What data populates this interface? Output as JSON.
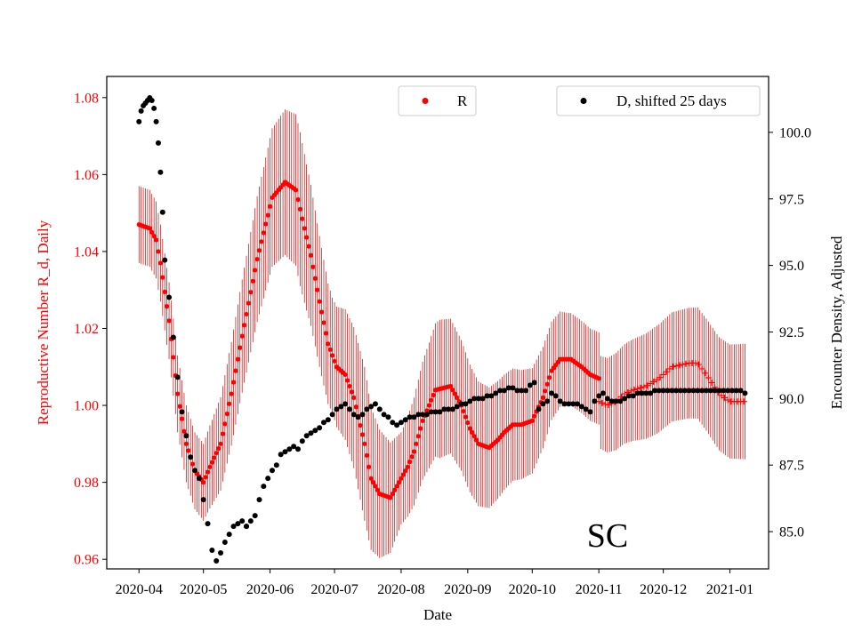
{
  "chart_data": {
    "type": "scatter",
    "title": "",
    "xlabel": "Date",
    "ylabel_left": "Reproductive Number R_d, Daily",
    "ylabel_right": "Encounter Density, Adjusted",
    "annotation": "SC",
    "colors": {
      "r_series": "#ff0000",
      "d_series": "#000000",
      "errorbar": "#cc0000"
    },
    "x_ticks": [
      "2020-04",
      "2020-05",
      "2020-06",
      "2020-07",
      "2020-08",
      "2020-09",
      "2020-10",
      "2020-11",
      "2020-12",
      "2021-01"
    ],
    "x_tick_days": [
      0,
      30,
      61,
      91,
      122,
      153,
      183,
      214,
      244,
      275
    ],
    "xlim_days": [
      -15,
      293
    ],
    "y_left_ticks": [
      "0.96",
      "0.98",
      "1.00",
      "1.02",
      "1.04",
      "1.06",
      "1.08"
    ],
    "y_left_tick_values": [
      0.96,
      0.98,
      1.0,
      1.02,
      1.04,
      1.06,
      1.08
    ],
    "ylim_left": [
      0.9575,
      1.0855
    ],
    "y_right_ticks": [
      "85.0",
      "87.5",
      "90.0",
      "92.5",
      "95.0",
      "97.5",
      "100.0"
    ],
    "y_right_tick_values": [
      85.0,
      87.5,
      90.0,
      92.5,
      95.0,
      97.5,
      100.0
    ],
    "ylim_right": [
      83.6,
      102.1
    ],
    "legend": [
      {
        "label": "R",
        "color": "#ff0000"
      },
      {
        "label": "D, shifted 25 days",
        "color": "#000000"
      }
    ],
    "series": [
      {
        "name": "R",
        "axis": "left",
        "marker": "circle",
        "keypoints": {
          "x": [
            0,
            5,
            8,
            10,
            14,
            18,
            22,
            26,
            30,
            33,
            38,
            43,
            48,
            55,
            62,
            68,
            73,
            77,
            80,
            84,
            88,
            92,
            96,
            100,
            105,
            108,
            112,
            117,
            121,
            125,
            128,
            132,
            138,
            145,
            150,
            154,
            158,
            163,
            167,
            170,
            174,
            178,
            183,
            188,
            192,
            196,
            201,
            206,
            210,
            214
          ],
          "y": [
            1.047,
            1.046,
            1.043,
            1.037,
            1.022,
            1.003,
            0.99,
            0.983,
            0.98,
            0.984,
            0.99,
            1.003,
            1.018,
            1.038,
            1.054,
            1.058,
            1.056,
            1.046,
            1.039,
            1.027,
            1.016,
            1.01,
            1.008,
            1.002,
            0.99,
            0.981,
            0.977,
            0.976,
            0.98,
            0.984,
            0.988,
            0.996,
            1.004,
            1.005,
            1.0,
            0.994,
            0.99,
            0.989,
            0.991,
            0.993,
            0.995,
            0.995,
            0.996,
            1.002,
            1.009,
            1.012,
            1.012,
            1.01,
            1.008,
            1.007
          ]
        },
        "range": [
          0,
          214
        ],
        "step": 1
      },
      {
        "name": "R_plus",
        "axis": "left",
        "marker": "plus",
        "keypoints": {
          "x": [
            214,
            218,
            222,
            226,
            230,
            236,
            242,
            248,
            256,
            260,
            264,
            270,
            275,
            282
          ],
          "y": [
            1.001,
            1.0,
            1.001,
            1.003,
            1.004,
            1.005,
            1.007,
            1.01,
            1.011,
            1.011,
            1.008,
            1.003,
            1.001,
            1.001
          ]
        },
        "range": [
          214,
          282
        ],
        "step": 1.5
      },
      {
        "name": "R_errorbar",
        "axis": "left",
        "type": "errorbar",
        "halfwidth_keypoints": {
          "x": [
            0,
            15,
            30,
            45,
            62,
            75,
            90,
            105,
            122,
            140,
            160,
            180,
            200,
            214,
            240,
            282
          ],
          "y": [
            0.01,
            0.01,
            0.01,
            0.014,
            0.018,
            0.02,
            0.015,
            0.02,
            0.012,
            0.018,
            0.016,
            0.014,
            0.012,
            0.012,
            0.014,
            0.015
          ]
        },
        "range": [
          0,
          282
        ],
        "step": 1
      },
      {
        "name": "D, shifted 25 days",
        "axis": "right",
        "marker": "circle",
        "segments": [
          {
            "x": [
              0,
              1,
              2,
              3,
              4,
              5,
              6,
              7,
              8,
              9,
              10,
              11
            ],
            "y": [
              100.4,
              100.8,
              101.0,
              101.1,
              101.2,
              101.3,
              101.2,
              100.9,
              100.4,
              99.6,
              98.5,
              97.0
            ]
          },
          {
            "x": [
              12,
              14,
              16,
              18,
              20,
              22,
              24,
              26,
              28,
              30,
              32,
              34,
              36,
              38,
              40,
              42,
              44,
              46,
              48,
              50
            ],
            "y": [
              95.2,
              93.8,
              92.3,
              90.8,
              89.5,
              88.6,
              87.8,
              87.3,
              87.0,
              86.2,
              85.3,
              84.3,
              83.9,
              84.2,
              84.6,
              84.9,
              85.2,
              85.3,
              85.4,
              85.2
            ]
          },
          {
            "x": [
              50,
              52,
              54,
              56,
              58,
              60,
              62,
              64,
              66,
              68,
              70,
              72,
              74,
              76,
              78,
              80,
              82,
              84,
              86,
              88,
              90,
              92,
              94,
              96
            ],
            "y": [
              85.2,
              85.4,
              85.6,
              86.2,
              86.7,
              87.0,
              87.3,
              87.5,
              87.9,
              88.0,
              88.1,
              88.2,
              88.1,
              88.4,
              88.6,
              88.7,
              88.8,
              88.9,
              89.1,
              89.2,
              89.4,
              89.6,
              89.7,
              89.8
            ]
          },
          {
            "x": [
              98,
              100,
              102,
              104,
              106,
              108,
              110,
              112,
              114,
              116,
              118,
              120,
              122,
              124,
              126,
              128,
              130,
              132,
              134,
              136,
              138,
              140,
              142,
              144,
              146,
              148,
              150,
              152,
              154,
              156,
              158,
              160,
              162,
              164,
              166,
              168,
              170,
              172,
              174,
              176,
              178,
              180,
              182,
              184
            ],
            "y": [
              89.6,
              89.4,
              89.3,
              89.4,
              89.6,
              89.7,
              89.8,
              89.6,
              89.4,
              89.3,
              89.1,
              89.0,
              89.1,
              89.2,
              89.3,
              89.3,
              89.4,
              89.4,
              89.4,
              89.5,
              89.5,
              89.5,
              89.6,
              89.6,
              89.6,
              89.7,
              89.8,
              89.8,
              89.9,
              90.0,
              90.0,
              90.0,
              90.1,
              90.1,
              90.2,
              90.3,
              90.3,
              90.4,
              90.4,
              90.3,
              90.3,
              90.3,
              90.5,
              90.6
            ]
          },
          {
            "x": [
              186,
              188,
              190,
              192,
              194,
              196,
              198,
              200,
              202,
              204,
              206,
              208,
              210,
              212,
              214,
              216,
              218,
              220,
              222,
              224,
              226,
              228,
              230,
              232,
              234,
              236,
              238,
              240,
              242,
              244,
              246,
              248,
              250,
              252,
              254,
              256,
              258,
              260,
              262,
              264,
              266,
              268,
              270,
              272,
              274,
              276,
              278,
              280,
              282
            ],
            "y": [
              89.6,
              89.8,
              89.9,
              90.2,
              90.1,
              89.9,
              89.8,
              89.8,
              89.8,
              89.8,
              89.7,
              89.6,
              89.5,
              89.9,
              90.1,
              90.2,
              90.0,
              89.9,
              89.9,
              89.9,
              90.0,
              90.1,
              90.1,
              90.2,
              90.2,
              90.2,
              90.2,
              90.3,
              90.3,
              90.3,
              90.3,
              90.3,
              90.3,
              90.3,
              90.3,
              90.3,
              90.3,
              90.3,
              90.3,
              90.3,
              90.3,
              90.3,
              90.3,
              90.3,
              90.3,
              90.3,
              90.3,
              90.3,
              90.2
            ]
          }
        ]
      }
    ]
  }
}
